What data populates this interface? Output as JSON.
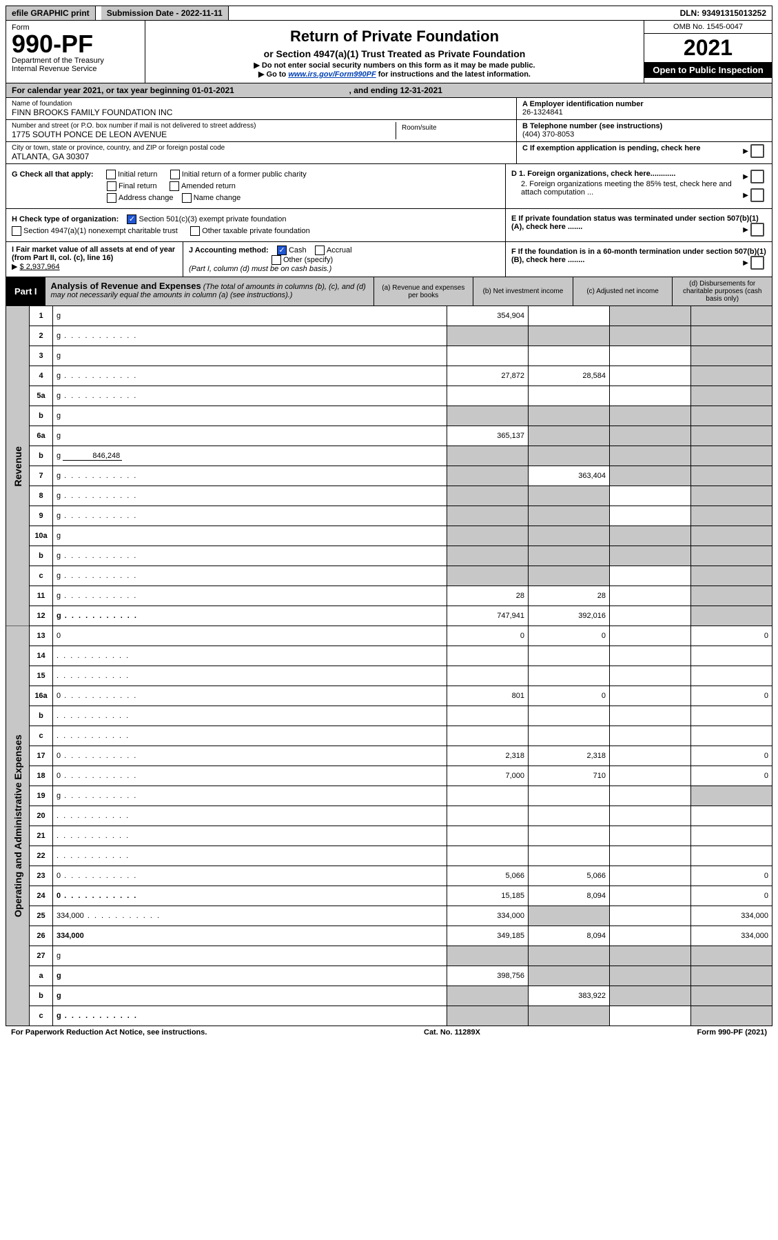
{
  "topbar": {
    "efile": "efile GRAPHIC print",
    "submission_label": "Submission Date - 2022-11-11",
    "dln": "DLN: 93491315013252"
  },
  "header": {
    "form_word": "Form",
    "form_number": "990-PF",
    "dept1": "Department of the Treasury",
    "dept2": "Internal Revenue Service",
    "title": "Return of Private Foundation",
    "subtitle": "or Section 4947(a)(1) Trust Treated as Private Foundation",
    "note1": "▶ Do not enter social security numbers on this form as it may be made public.",
    "note2_pre": "▶ Go to ",
    "note2_link": "www.irs.gov/Form990PF",
    "note2_post": " for instructions and the latest information.",
    "omb": "OMB No. 1545-0047",
    "year": "2021",
    "open": "Open to Public Inspection"
  },
  "calendar": {
    "text_pre": "For calendar year 2021, or tax year beginning ",
    "begin": "01-01-2021",
    "mid": " , and ending ",
    "end": "12-31-2021"
  },
  "info": {
    "name_label": "Name of foundation",
    "name": "FINN BROOKS FAMILY FOUNDATION INC",
    "addr_label": "Number and street (or P.O. box number if mail is not delivered to street address)",
    "addr": "1775 SOUTH PONCE DE LEON AVENUE",
    "room_label": "Room/suite",
    "city_label": "City or town, state or province, country, and ZIP or foreign postal code",
    "city": "ATLANTA, GA  30307",
    "ein_label": "A Employer identification number",
    "ein": "26-1324841",
    "phone_label": "B Telephone number (see instructions)",
    "phone": "(404) 370-8053",
    "c_label": "C If exemption application is pending, check here"
  },
  "g": {
    "label": "G Check all that apply:",
    "opts": [
      "Initial return",
      "Initial return of a former public charity",
      "Final return",
      "Amended return",
      "Address change",
      "Name change"
    ]
  },
  "d": {
    "d1": "D 1. Foreign organizations, check here............",
    "d2": "2. Foreign organizations meeting the 85% test, check here and attach computation ...",
    "e": "E  If private foundation status was terminated under section 507(b)(1)(A), check here .......",
    "f": "F  If the foundation is in a 60-month termination under section 507(b)(1)(B), check here ........"
  },
  "h": {
    "label": "H Check type of organization:",
    "opt1": "Section 501(c)(3) exempt private foundation",
    "opt2": "Section 4947(a)(1) nonexempt charitable trust",
    "opt3": "Other taxable private foundation"
  },
  "i": {
    "label": "I Fair market value of all assets at end of year (from Part II, col. (c), line 16)",
    "amount": "$  2,937,964"
  },
  "j": {
    "label": "J Accounting method:",
    "opt1": "Cash",
    "opt2": "Accrual",
    "opt3": "Other (specify)",
    "note": "(Part I, column (d) must be on cash basis.)"
  },
  "part1": {
    "badge": "Part I",
    "title": "Analysis of Revenue and Expenses",
    "title_note": " (The total of amounts in columns (b), (c), and (d) may not necessarily equal the amounts in column (a) (see instructions).)",
    "col_a": "(a) Revenue and expenses per books",
    "col_b": "(b) Net investment income",
    "col_c": "(c) Adjusted net income",
    "col_d": "(d) Disbursements for charitable purposes (cash basis only)"
  },
  "side": {
    "revenue": "Revenue",
    "expenses": "Operating and Administrative Expenses"
  },
  "rows": [
    {
      "n": "1",
      "d": "g",
      "a": "354,904",
      "b": "",
      "c": "g"
    },
    {
      "n": "2",
      "d": "g",
      "a": "g",
      "b": "g",
      "c": "g",
      "dots": true
    },
    {
      "n": "3",
      "d": "g",
      "a": "",
      "b": "",
      "c": ""
    },
    {
      "n": "4",
      "d": "g",
      "a": "27,872",
      "b": "28,584",
      "c": "",
      "dots": true
    },
    {
      "n": "5a",
      "d": "g",
      "a": "",
      "b": "",
      "c": "",
      "dots": true
    },
    {
      "n": "b",
      "d": "g",
      "a": "g",
      "b": "g",
      "c": "g"
    },
    {
      "n": "6a",
      "d": "g",
      "a": "365,137",
      "b": "g",
      "c": "g"
    },
    {
      "n": "b",
      "d": "g",
      "inline": "846,248",
      "a": "g",
      "b": "g",
      "c": "g"
    },
    {
      "n": "7",
      "d": "g",
      "a": "g",
      "b": "363,404",
      "c": "g",
      "dots": true
    },
    {
      "n": "8",
      "d": "g",
      "a": "g",
      "b": "g",
      "c": "",
      "dots": true
    },
    {
      "n": "9",
      "d": "g",
      "a": "g",
      "b": "g",
      "c": "",
      "dots": true
    },
    {
      "n": "10a",
      "d": "g",
      "a": "g",
      "b": "g",
      "c": "g"
    },
    {
      "n": "b",
      "d": "g",
      "a": "g",
      "b": "g",
      "c": "g",
      "dots": true
    },
    {
      "n": "c",
      "d": "g",
      "a": "g",
      "b": "g",
      "c": "",
      "dots": true
    },
    {
      "n": "11",
      "d": "g",
      "a": "28",
      "b": "28",
      "c": "",
      "dots": true
    },
    {
      "n": "12",
      "d": "g",
      "bold": true,
      "a": "747,941",
      "b": "392,016",
      "c": "",
      "dots": true
    },
    {
      "n": "13",
      "d": "0",
      "a": "0",
      "b": "0",
      "c": "",
      "exp": true
    },
    {
      "n": "14",
      "d": "",
      "a": "",
      "b": "",
      "c": "",
      "dots": true,
      "exp": true
    },
    {
      "n": "15",
      "d": "",
      "a": "",
      "b": "",
      "c": "",
      "dots": true,
      "exp": true
    },
    {
      "n": "16a",
      "d": "0",
      "a": "801",
      "b": "0",
      "c": "",
      "dots": true,
      "exp": true
    },
    {
      "n": "b",
      "d": "",
      "a": "",
      "b": "",
      "c": "",
      "dots": true,
      "exp": true
    },
    {
      "n": "c",
      "d": "",
      "a": "",
      "b": "",
      "c": "",
      "dots": true,
      "exp": true
    },
    {
      "n": "17",
      "d": "0",
      "a": "2,318",
      "b": "2,318",
      "c": "",
      "dots": true,
      "exp": true
    },
    {
      "n": "18",
      "d": "0",
      "a": "7,000",
      "b": "710",
      "c": "",
      "dots": true,
      "exp": true
    },
    {
      "n": "19",
      "d": "g",
      "a": "",
      "b": "",
      "c": "",
      "dots": true,
      "exp": true
    },
    {
      "n": "20",
      "d": "",
      "a": "",
      "b": "",
      "c": "",
      "dots": true,
      "exp": true
    },
    {
      "n": "21",
      "d": "",
      "a": "",
      "b": "",
      "c": "",
      "dots": true,
      "exp": true
    },
    {
      "n": "22",
      "d": "",
      "a": "",
      "b": "",
      "c": "",
      "dots": true,
      "exp": true
    },
    {
      "n": "23",
      "d": "0",
      "a": "5,066",
      "b": "5,066",
      "c": "",
      "dots": true,
      "exp": true
    },
    {
      "n": "24",
      "d": "0",
      "bold": true,
      "a": "15,185",
      "b": "8,094",
      "c": "",
      "dots": true,
      "exp": true
    },
    {
      "n": "25",
      "d": "334,000",
      "a": "334,000",
      "b": "g",
      "c": "",
      "dots": true,
      "exp": true
    },
    {
      "n": "26",
      "d": "334,000",
      "bold": true,
      "a": "349,185",
      "b": "8,094",
      "c": "",
      "exp": true
    },
    {
      "n": "27",
      "d": "g",
      "a": "g",
      "b": "g",
      "c": "g",
      "exp": true
    },
    {
      "n": "a",
      "d": "g",
      "bold": true,
      "a": "398,756",
      "b": "g",
      "c": "g",
      "exp": true
    },
    {
      "n": "b",
      "d": "g",
      "bold": true,
      "a": "g",
      "b": "383,922",
      "c": "g",
      "exp": true
    },
    {
      "n": "c",
      "d": "g",
      "bold": true,
      "a": "g",
      "b": "g",
      "c": "",
      "dots": true,
      "exp": true
    }
  ],
  "footer": {
    "left": "For Paperwork Reduction Act Notice, see instructions.",
    "mid": "Cat. No. 11289X",
    "right": "Form 990-PF (2021)"
  },
  "colors": {
    "grey": "#c7c7c7",
    "black": "#000000",
    "link": "#0040b3",
    "check": "#2156d1"
  }
}
